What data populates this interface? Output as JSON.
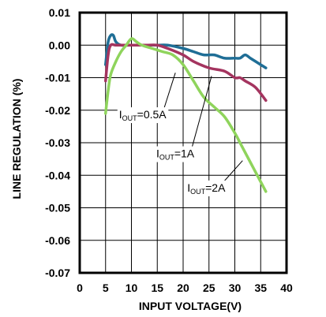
{
  "chart_data": {
    "type": "line",
    "xlabel": "INPUT VOLTAGE(V)",
    "ylabel": "LINE REGULATION  (%)",
    "xlim": [
      0,
      40
    ],
    "ylim": [
      -0.07,
      0.01
    ],
    "x_ticks": [
      "0",
      "5",
      "10",
      "15",
      "20",
      "25",
      "30",
      "35",
      "40"
    ],
    "y_ticks": [
      "0.01",
      "0.00",
      "-0.01",
      "-0.02",
      "-0.03",
      "-0.04",
      "-0.05",
      "-0.06",
      "-0.07"
    ],
    "grid": true,
    "series": [
      {
        "name": "IOUT=0.5A",
        "color": "#1f6e96",
        "points": [
          [
            5,
            -0.006
          ],
          [
            5.5,
            0.001
          ],
          [
            6,
            0.003
          ],
          [
            6.5,
            0.003
          ],
          [
            7,
            0.001
          ],
          [
            8,
            0.0
          ],
          [
            10,
            0.0
          ],
          [
            12,
            0.0
          ],
          [
            15,
            0.0
          ],
          [
            17,
            0.0
          ],
          [
            20,
            -0.001
          ],
          [
            22,
            -0.002
          ],
          [
            24,
            -0.003
          ],
          [
            26,
            -0.003
          ],
          [
            28,
            -0.004
          ],
          [
            30,
            -0.004
          ],
          [
            31,
            -0.004
          ],
          [
            32,
            -0.003
          ],
          [
            33,
            -0.004
          ],
          [
            34,
            -0.005
          ],
          [
            36,
            -0.007
          ]
        ]
      },
      {
        "name": "IOUT=1A",
        "color": "#a4345f",
        "points": [
          [
            5,
            -0.011
          ],
          [
            5.5,
            -0.003
          ],
          [
            6,
            0.0
          ],
          [
            7,
            0.0
          ],
          [
            9,
            0.0
          ],
          [
            11,
            0.0
          ],
          [
            13,
            0.0
          ],
          [
            15,
            0.0
          ],
          [
            17,
            -0.001
          ],
          [
            20,
            -0.003
          ],
          [
            22,
            -0.005
          ],
          [
            25,
            -0.007
          ],
          [
            28,
            -0.008
          ],
          [
            30,
            -0.01
          ],
          [
            31,
            -0.01
          ],
          [
            32,
            -0.011
          ],
          [
            34,
            -0.013
          ],
          [
            36,
            -0.017
          ]
        ]
      },
      {
        "name": "IOUT=2A",
        "color": "#8fd45c",
        "points": [
          [
            5,
            -0.021
          ],
          [
            5.5,
            -0.014
          ],
          [
            6,
            -0.009
          ],
          [
            7,
            -0.005
          ],
          [
            8,
            -0.002
          ],
          [
            9,
            0.0
          ],
          [
            10,
            0.002
          ],
          [
            11,
            0.001
          ],
          [
            12,
            0.0
          ],
          [
            14,
            -0.001
          ],
          [
            16,
            -0.002
          ],
          [
            18,
            -0.003
          ],
          [
            20,
            -0.006
          ],
          [
            22,
            -0.011
          ],
          [
            24,
            -0.016
          ],
          [
            26,
            -0.019
          ],
          [
            28,
            -0.022
          ],
          [
            30,
            -0.027
          ],
          [
            31,
            -0.03
          ],
          [
            32,
            -0.033
          ],
          [
            33,
            -0.036
          ],
          [
            34,
            -0.039
          ],
          [
            35,
            -0.042
          ],
          [
            36,
            -0.045
          ]
        ]
      }
    ],
    "annotations": [
      {
        "label": "I",
        "sub": "OUT",
        "value": "=0.5A",
        "x": 7.6,
        "y": -0.0225,
        "tip": [
          18.5,
          -0.0085
        ]
      },
      {
        "label": "I",
        "sub": "OUT",
        "value": "=1A",
        "x": 14.8,
        "y": -0.0345,
        "tip": [
          25.5,
          -0.0095
        ]
      },
      {
        "label": "I",
        "sub": "OUT",
        "value": "=2A",
        "x": 20.8,
        "y": -0.045,
        "tip": [
          31.5,
          -0.0355
        ]
      }
    ]
  }
}
